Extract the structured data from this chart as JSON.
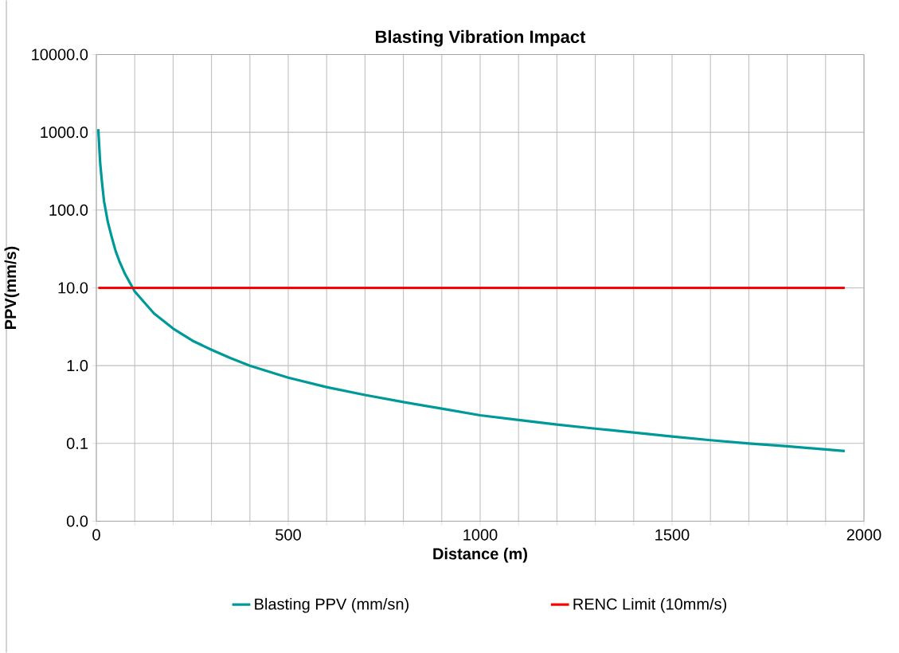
{
  "chart_data": {
    "type": "line",
    "title": "Blasting Vibration Impact",
    "xlabel": "Distance (m)",
    "ylabel": "PPV(mm/s)",
    "log": "y",
    "grid": true,
    "legend": "bottom",
    "xlim": [
      0,
      2000
    ],
    "xticks": [
      0,
      {
        "value": 100,
        "label": null
      },
      {
        "value": 200,
        "label": null
      },
      {
        "value": 300,
        "label": null
      },
      {
        "value": 400,
        "label": null
      },
      500,
      {
        "value": 600,
        "label": null
      },
      {
        "value": 700,
        "label": null
      },
      {
        "value": 800,
        "label": null
      },
      {
        "value": 900,
        "label": null
      },
      1000,
      {
        "value": 1100,
        "label": null
      },
      {
        "value": 1200,
        "label": null
      },
      {
        "value": 1300,
        "label": null
      },
      {
        "value": 1400,
        "label": null
      },
      1500,
      {
        "value": 1600,
        "label": null
      },
      {
        "value": 1700,
        "label": null
      },
      {
        "value": 1800,
        "label": null
      },
      {
        "value": 1900,
        "label": null
      },
      2000
    ],
    "ylim": [
      0.01,
      10000
    ],
    "yticks": [
      {
        "value": 0.01,
        "label": "0.0"
      },
      0.1,
      {
        "value": 1,
        "label": "1.0"
      },
      {
        "value": 10,
        "label": "10.0"
      },
      {
        "value": 100,
        "label": "100.0"
      },
      {
        "value": 1000,
        "label": "1000.0"
      },
      {
        "value": 10000,
        "label": "10000.0"
      }
    ],
    "series": [
      {
        "name": "Blasting PPV (mm/sn)",
        "color": "#009999",
        "x": [
          5,
          10,
          15,
          20,
          30,
          40,
          50,
          60,
          75,
          100,
          125,
          150,
          200,
          250,
          300,
          350,
          400,
          500,
          600,
          700,
          800,
          900,
          1000,
          1100,
          1200,
          1300,
          1400,
          1500,
          1600,
          1700,
          1800,
          1950
        ],
        "values": [
          1100,
          400,
          220,
          130,
          70,
          45,
          30,
          22,
          15,
          9,
          6.5,
          4.7,
          3.0,
          2.1,
          1.6,
          1.25,
          1.0,
          0.7,
          0.53,
          0.42,
          0.34,
          0.28,
          0.23,
          0.2,
          0.175,
          0.155,
          0.138,
          0.123,
          0.11,
          0.1,
          0.092,
          0.08
        ]
      },
      {
        "name": "RENC Limit (10mm/s)",
        "color": "#ff0000",
        "x": [
          5,
          1950
        ],
        "values": [
          10,
          10
        ]
      }
    ]
  }
}
